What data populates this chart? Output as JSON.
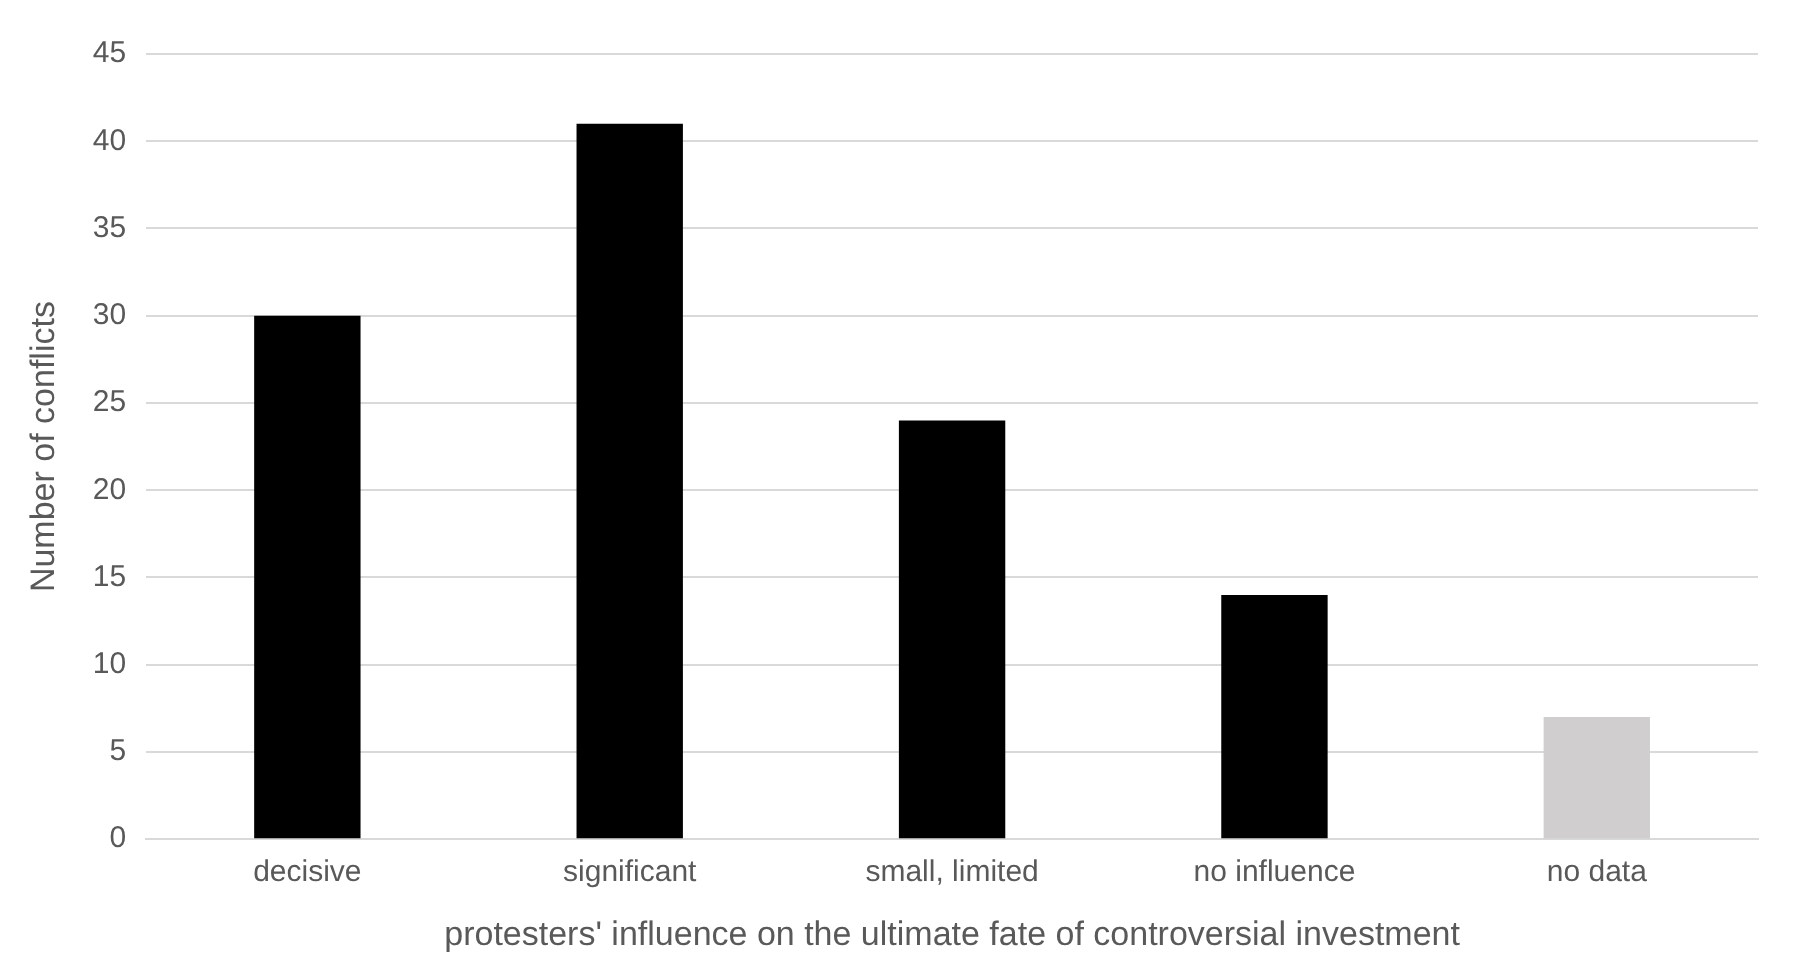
{
  "chart_data": {
    "type": "bar",
    "xlabel": "protesters' influence on the ultimate fate of controversial investment",
    "ylabel": "Number of conflicts",
    "categories": [
      "decisive",
      "significant",
      "small, limited",
      "no influence",
      "no data"
    ],
    "values": [
      30,
      41,
      24,
      14,
      7
    ],
    "colors": [
      "#000000",
      "#000000",
      "#000000",
      "#000000",
      "#d0cece"
    ],
    "ylim": [
      0,
      45
    ],
    "yticks": [
      0,
      5,
      10,
      15,
      20,
      25,
      30,
      35,
      40,
      45
    ],
    "grid": "y",
    "legend": false
  }
}
